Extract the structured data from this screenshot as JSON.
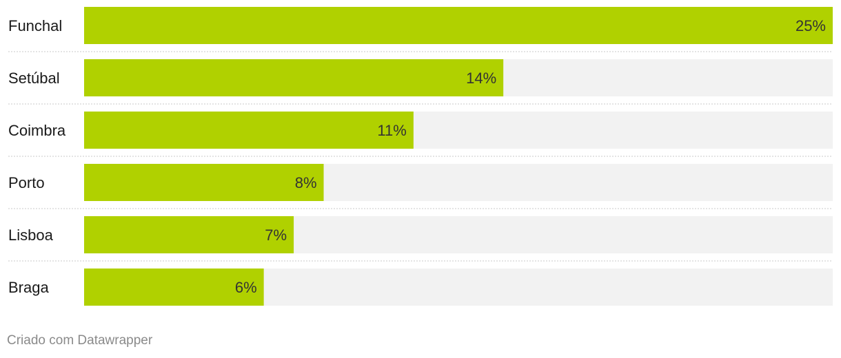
{
  "chart_data": {
    "type": "bar",
    "orientation": "horizontal",
    "categories": [
      "Funchal",
      "Setúbal",
      "Coimbra",
      "Porto",
      "Lisboa",
      "Braga"
    ],
    "values": [
      25,
      14,
      11,
      8,
      7,
      6
    ],
    "value_labels": [
      "25%",
      "14%",
      "11%",
      "8%",
      "7%",
      "6%"
    ],
    "xlim": [
      0,
      25
    ],
    "bar_color": "#b0d100",
    "track_color": "#f2f2f2",
    "grid": false
  },
  "footer": {
    "credit": "Criado com Datawrapper"
  }
}
